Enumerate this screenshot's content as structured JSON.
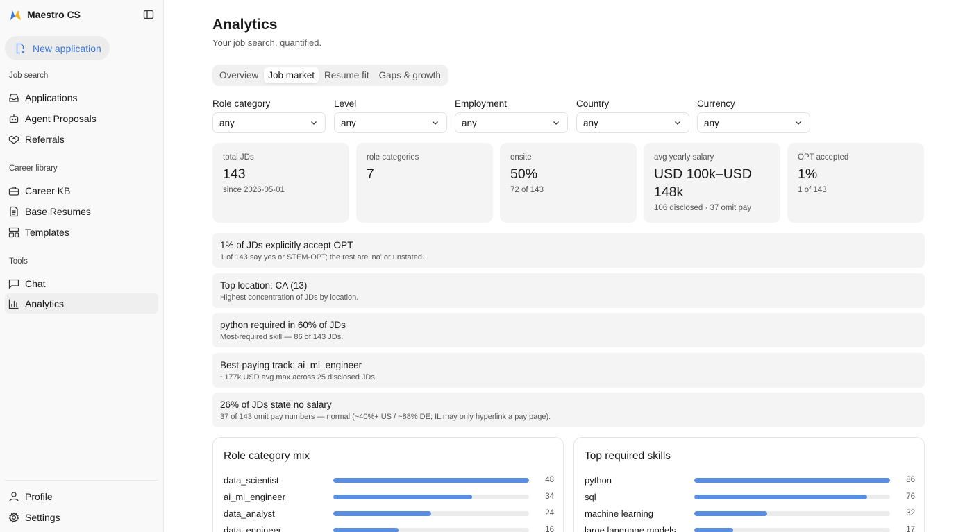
{
  "app": {
    "name": "Maestro CS"
  },
  "sidebar": {
    "new_application": "New application",
    "sections": [
      {
        "label": "Job search",
        "items": [
          "Applications",
          "Agent Proposals",
          "Referrals"
        ]
      },
      {
        "label": "Career library",
        "items": [
          "Career KB",
          "Base Resumes",
          "Templates"
        ]
      },
      {
        "label": "Tools",
        "items": [
          "Chat",
          "Analytics"
        ]
      }
    ],
    "footer": [
      "Profile",
      "Settings"
    ],
    "active_item": "Analytics"
  },
  "header": {
    "title": "Analytics",
    "subtitle": "Your job search, quantified."
  },
  "tabs": [
    {
      "label": "Overview",
      "active": false
    },
    {
      "label": "Job market",
      "active": true
    },
    {
      "label": "Resume fit",
      "active": false
    },
    {
      "label": "Gaps & growth",
      "active": false
    }
  ],
  "filters": [
    {
      "label": "Role category",
      "value": "any"
    },
    {
      "label": "Level",
      "value": "any"
    },
    {
      "label": "Employment",
      "value": "any"
    },
    {
      "label": "Country",
      "value": "any"
    },
    {
      "label": "Currency",
      "value": "any"
    }
  ],
  "stats": [
    {
      "label": "total JDs",
      "value": "143",
      "sub": "since 2026-05-01"
    },
    {
      "label": "role categories",
      "value": "7",
      "sub": ""
    },
    {
      "label": "onsite",
      "value": "50%",
      "sub": "72 of 143"
    },
    {
      "label": "avg yearly salary",
      "value": "USD 100k–USD 148k",
      "sub": "106 disclosed · 37 omit pay"
    },
    {
      "label": "OPT accepted",
      "value": "1%",
      "sub": "1 of 143"
    }
  ],
  "insights": [
    {
      "title": "1% of JDs explicitly accept OPT",
      "sub": "1 of 143 say yes or STEM-OPT; the rest are 'no' or unstated."
    },
    {
      "title": "Top location: CA (13)",
      "sub": "Highest concentration of JDs by location."
    },
    {
      "title": "python required in 60% of JDs",
      "sub": "Most-required skill — 86 of 143 JDs."
    },
    {
      "title": "Best-paying track: ai_ml_engineer",
      "sub": "~177k USD avg max across 25 disclosed JDs."
    },
    {
      "title": "26% of JDs state no salary",
      "sub": "37 of 143 omit pay numbers — normal (~40%+ US / ~88% DE; IL may only hyperlink a pay page)."
    }
  ],
  "panels": {
    "role_mix": {
      "title": "Role category mix",
      "max": 48,
      "rows": [
        {
          "label": "data_scientist",
          "value": 48
        },
        {
          "label": "ai_ml_engineer",
          "value": 34
        },
        {
          "label": "data_analyst",
          "value": 24
        },
        {
          "label": "data_engineer",
          "value": 16
        }
      ]
    },
    "skills": {
      "title": "Top required skills",
      "max": 86,
      "rows": [
        {
          "label": "python",
          "value": 86
        },
        {
          "label": "sql",
          "value": 76
        },
        {
          "label": "machine learning",
          "value": 32
        },
        {
          "label": "large language models",
          "value": 17
        }
      ]
    }
  },
  "colors": {
    "accent": "#3b78d8",
    "bar": "#5b8ede",
    "card_bg": "#f4f4f4"
  }
}
